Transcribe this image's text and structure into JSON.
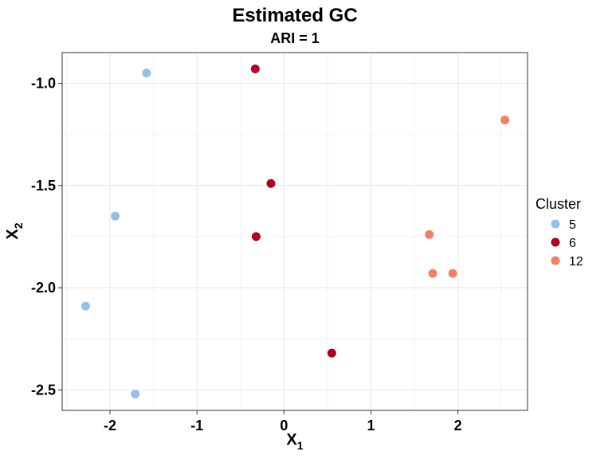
{
  "chart_data": {
    "type": "scatter",
    "title": "Estimated GC",
    "subtitle": "ARI = 1",
    "xlabel": "X",
    "xlabel_sub": "1",
    "ylabel": "X",
    "ylabel_sub": "2",
    "xlim": [
      -2.55,
      2.8
    ],
    "ylim": [
      -2.6,
      -0.85
    ],
    "xticks": [
      -2,
      -1,
      0,
      1,
      2
    ],
    "xtick_labels": [
      "-2",
      "-1",
      "0",
      "1",
      "2"
    ],
    "yticks": [
      -1.0,
      -1.5,
      -2.0,
      -2.5
    ],
    "ytick_labels": [
      "-1.0",
      "-1.5",
      "-2.0",
      "-2.5"
    ],
    "grid": true,
    "legend": {
      "title": "Cluster",
      "position": "right"
    },
    "series": [
      {
        "name": "5",
        "color": "#92C0EA",
        "points": [
          {
            "x": -1.58,
            "y": -0.95
          },
          {
            "x": -1.94,
            "y": -1.65
          },
          {
            "x": -2.28,
            "y": -2.09
          },
          {
            "x": -1.71,
            "y": -2.52
          }
        ]
      },
      {
        "name": "6",
        "color": "#B2001F",
        "points": [
          {
            "x": -0.33,
            "y": -0.93
          },
          {
            "x": -0.15,
            "y": -1.49
          },
          {
            "x": -0.32,
            "y": -1.75
          },
          {
            "x": 0.55,
            "y": -2.32
          }
        ]
      },
      {
        "name": "12",
        "color": "#F18066",
        "points": [
          {
            "x": 2.54,
            "y": -1.18
          },
          {
            "x": 1.67,
            "y": -1.74
          },
          {
            "x": 1.71,
            "y": -1.93
          },
          {
            "x": 1.94,
            "y": -1.93
          }
        ]
      }
    ]
  }
}
